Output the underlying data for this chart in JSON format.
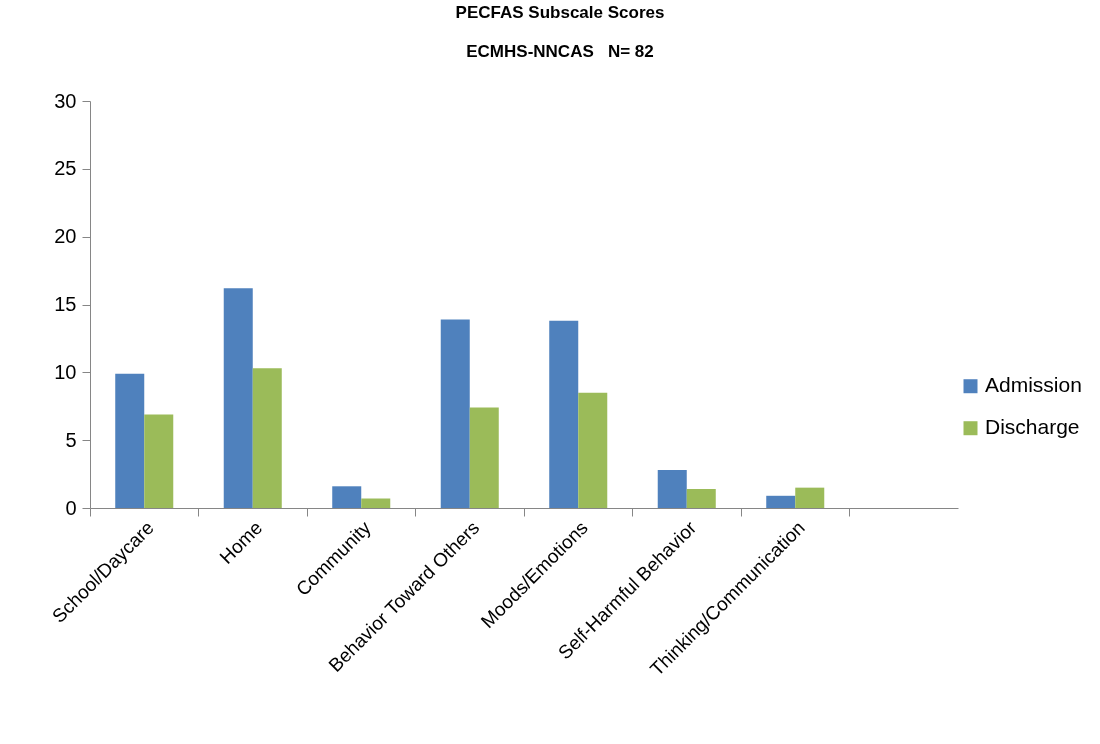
{
  "chart_data": {
    "type": "bar",
    "title": "PECFAS Subscale Scores",
    "subtitle": "ECMHS-NNCAS   N= 82",
    "categories": [
      "School/Daycare",
      "Home",
      "Community",
      "Behavior Toward Others",
      "Moods/Emotions",
      "Self-Harmful Behavior",
      "Thinking/Communication",
      null
    ],
    "series": [
      {
        "name": "Admission",
        "color": "#4f81bd",
        "values": [
          9.9,
          16.2,
          1.6,
          13.9,
          13.8,
          2.8,
          0.9,
          null
        ]
      },
      {
        "name": "Discharge",
        "color": "#9bbb59",
        "values": [
          6.9,
          10.3,
          0.7,
          7.4,
          8.5,
          1.4,
          1.5,
          null
        ]
      }
    ],
    "ylim": [
      0,
      30
    ],
    "yticks": [
      0,
      5,
      10,
      15,
      20,
      25,
      30
    ],
    "grid": false,
    "legend": "right"
  }
}
